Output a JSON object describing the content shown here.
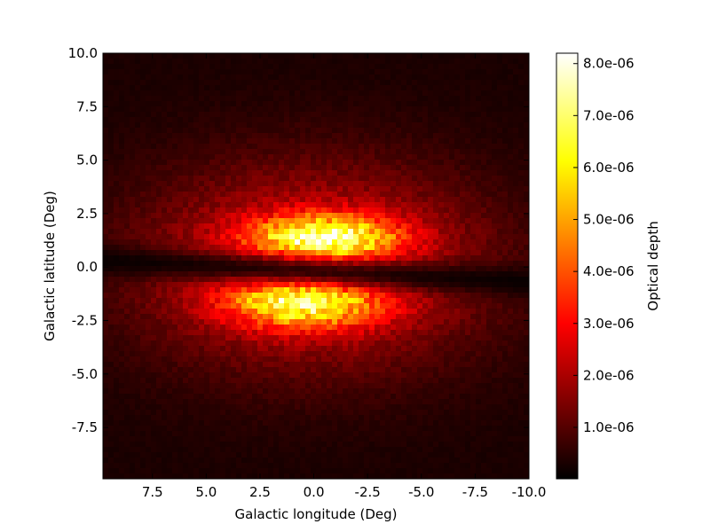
{
  "chart_data": {
    "type": "heatmap",
    "title": "",
    "xlabel": "Galactic longitude (Deg)",
    "ylabel": "Galactic latitude (Deg)",
    "xlim": [
      9.8,
      -10.0
    ],
    "ylim": [
      -9.9,
      10.0
    ],
    "x_ticks": [
      7.5,
      5.0,
      2.5,
      0.0,
      -2.5,
      -5.0,
      -7.5,
      -10.0
    ],
    "x_tick_labels": [
      "7.5",
      "5.0",
      "2.5",
      "0.0",
      "-2.5",
      "-5.0",
      "-7.5",
      "-10.0"
    ],
    "y_ticks": [
      10.0,
      7.5,
      5.0,
      2.5,
      0.0,
      -2.5,
      -5.0,
      -7.5
    ],
    "y_tick_labels": [
      "10.0",
      "7.5",
      "5.0",
      "2.5",
      "0.0",
      "-2.5",
      "-5.0",
      "-7.5"
    ],
    "colormap": "hot",
    "colorbar": {
      "label": "Optical depth",
      "range": [
        1e-08,
        8.2e-06
      ],
      "ticks": [
        1e-06,
        2e-06,
        3e-06,
        4e-06,
        5e-06,
        6e-06,
        7e-06,
        8e-06
      ],
      "tick_labels": [
        "1.0e-06",
        "2.0e-06",
        "3.0e-06",
        "4.0e-06",
        "5.0e-06",
        "6.0e-06",
        "7.0e-06",
        "8.0e-06"
      ]
    },
    "grid": false,
    "field_description": {
      "peak_upper": {
        "l": -0.5,
        "b": 1.3,
        "value": 8e-06
      },
      "peak_lower": {
        "l": 0.5,
        "b": -1.6,
        "value": 7.5e-06
      },
      "dust_lane_b": -0.2,
      "background_value": 5e-07
    }
  }
}
